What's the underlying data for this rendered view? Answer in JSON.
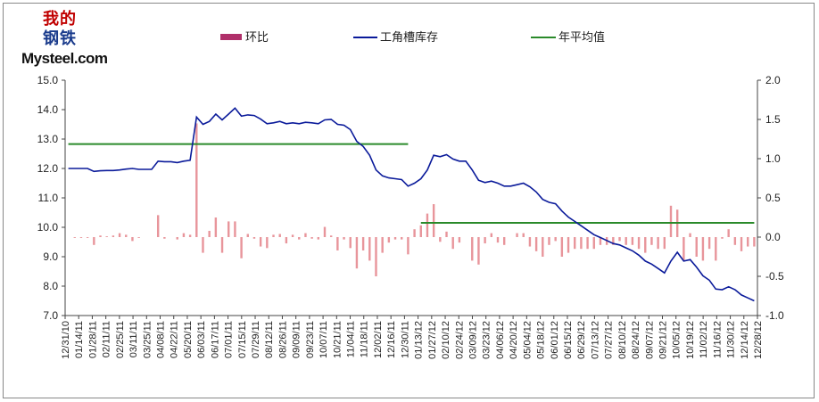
{
  "logo": {
    "line1": "我的",
    "line2": "钢铁",
    "brand": "Mysteel.com"
  },
  "colors": {
    "ratio": "#e8959b",
    "ratio_legend": "#b0306a",
    "inventory": "#0a1a9a",
    "avg": "#2a8a2a",
    "axis": "#444444",
    "frame": "#888888"
  },
  "chart_data": {
    "type": "bar+line",
    "legend": [
      "环比",
      "工角槽库存",
      "年平均值"
    ],
    "legend_placement": "top",
    "x_tick_labels": [
      "12/31/10",
      "01/14/11",
      "01/28/11",
      "02/11/11",
      "02/25/11",
      "03/11/11",
      "03/25/11",
      "04/08/11",
      "04/22/11",
      "05/20/11",
      "06/03/11",
      "06/17/11",
      "07/01/11",
      "07/15/11",
      "07/29/11",
      "08/12/11",
      "08/26/11",
      "09/09/11",
      "09/23/11",
      "10/07/11",
      "10/21/11",
      "11/04/11",
      "11/18/11",
      "12/02/11",
      "12/16/11",
      "12/30/11",
      "01/13/12",
      "01/27/12",
      "02/10/12",
      "02/24/12",
      "03/09/12",
      "03/23/12",
      "04/06/12",
      "04/20/12",
      "05/04/12",
      "05/18/12",
      "06/01/12",
      "06/15/12",
      "06/29/12",
      "07/13/12",
      "07/27/12",
      "08/10/12",
      "08/24/12",
      "09/07/12",
      "09/21/12",
      "10/05/12",
      "10/19/12",
      "11/02/12",
      "11/16/12",
      "11/30/12",
      "12/14/12",
      "12/28/12"
    ],
    "y_left": {
      "min": 7.0,
      "max": 15.0,
      "ticks": [
        "7.0",
        "8.0",
        "9.0",
        "10.0",
        "11.0",
        "12.0",
        "13.0",
        "14.0",
        "15.0"
      ]
    },
    "y_right": {
      "min": -1.0,
      "max": 2.0,
      "ticks": [
        "-1.0",
        "-0.5",
        "0.0",
        "0.5",
        "1.0",
        "1.5",
        "2.0"
      ]
    },
    "series": [
      {
        "name": "工角槽库存",
        "axis": "left",
        "kind": "line",
        "values": [
          12.0,
          12.0,
          12.0,
          12.0,
          11.9,
          11.92,
          11.93,
          11.93,
          11.95,
          11.98,
          12.0,
          11.97,
          11.97,
          11.97,
          12.25,
          12.23,
          12.23,
          12.2,
          12.25,
          12.28,
          13.75,
          13.5,
          13.6,
          13.85,
          13.65,
          13.85,
          14.05,
          13.78,
          13.82,
          13.8,
          13.68,
          13.52,
          13.55,
          13.6,
          13.52,
          13.55,
          13.52,
          13.57,
          13.55,
          13.52,
          13.65,
          13.67,
          13.5,
          13.47,
          13.32,
          12.92,
          12.75,
          12.45,
          11.95,
          11.75,
          11.68,
          11.65,
          11.62,
          11.4,
          11.5,
          11.65,
          11.95,
          12.45,
          12.4,
          12.47,
          12.32,
          12.25,
          12.25,
          11.95,
          11.6,
          11.52,
          11.57,
          11.5,
          11.4,
          11.4,
          11.45,
          11.5,
          11.38,
          11.2,
          10.95,
          10.85,
          10.8,
          10.55,
          10.35,
          10.2,
          10.05,
          9.9,
          9.75,
          9.65,
          9.55,
          9.45,
          9.4,
          9.3,
          9.2,
          9.05,
          8.85,
          8.75,
          8.6,
          8.45,
          8.85,
          9.15,
          8.85,
          8.9,
          8.65,
          8.35,
          8.2,
          7.9,
          7.88,
          7.98,
          7.88,
          7.7,
          7.6,
          7.5
        ]
      },
      {
        "name": "环比",
        "axis": "right",
        "kind": "bar",
        "values": [
          0,
          -0.01,
          -0.01,
          -0.01,
          -0.1,
          0.02,
          0.01,
          0.02,
          0.05,
          0.03,
          -0.05,
          -0.01,
          0,
          0,
          0.28,
          -0.02,
          0,
          -0.03,
          0.05,
          0.03,
          1.45,
          -0.2,
          0.08,
          0.25,
          -0.2,
          0.2,
          0.2,
          -0.27,
          0.04,
          -0.02,
          -0.12,
          -0.14,
          0.03,
          0.04,
          -0.08,
          0.03,
          -0.03,
          0.05,
          -0.02,
          -0.03,
          0.13,
          0.02,
          -0.17,
          -0.03,
          -0.14,
          -0.4,
          -0.17,
          -0.3,
          -0.5,
          -0.2,
          -0.07,
          -0.03,
          -0.03,
          -0.22,
          0.1,
          0.15,
          0.3,
          0.42,
          -0.06,
          0.07,
          -0.15,
          -0.07,
          0,
          -0.3,
          -0.35,
          -0.08,
          0.05,
          -0.07,
          -0.1,
          0,
          0.05,
          0.05,
          -0.12,
          -0.18,
          -0.25,
          -0.1,
          -0.05,
          -0.25,
          -0.2,
          -0.15,
          -0.15,
          -0.15,
          -0.15,
          -0.1,
          -0.1,
          -0.1,
          -0.05,
          -0.1,
          -0.1,
          -0.15,
          -0.2,
          -0.1,
          -0.15,
          -0.15,
          0.4,
          0.35,
          -0.3,
          0.05,
          -0.25,
          -0.3,
          -0.15,
          -0.3,
          -0.02,
          0.1,
          -0.1,
          -0.18,
          -0.12,
          -0.12
        ]
      },
      {
        "name": "年平均值",
        "axis": "left",
        "kind": "segments",
        "segments": [
          {
            "x_start": 0,
            "x_end": 53,
            "value": 12.83
          },
          {
            "x_start": 55,
            "x_end": 107,
            "value": 10.15
          }
        ]
      }
    ],
    "grid": false,
    "n_points": 108
  }
}
